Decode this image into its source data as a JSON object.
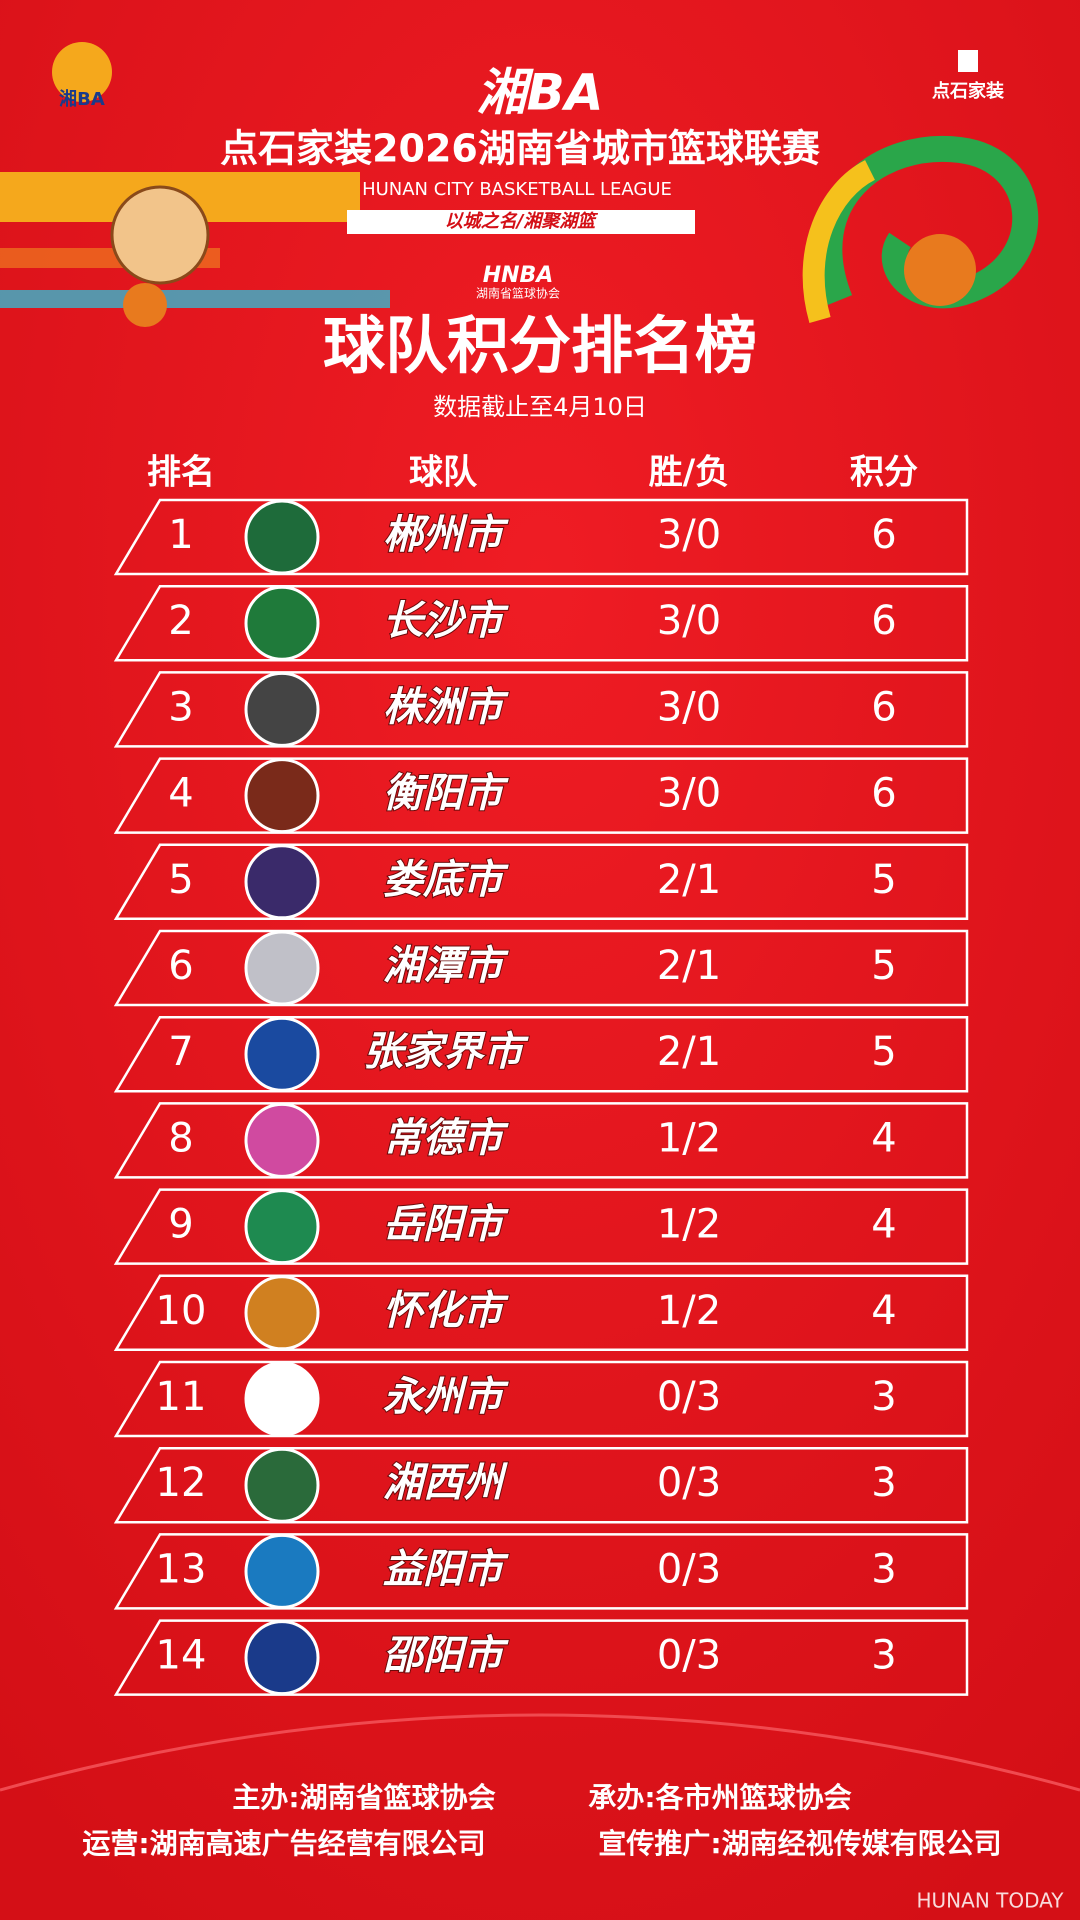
{
  "header": {
    "corner_logo": "湘BA",
    "sponsor": "点石家装",
    "brand": "湘BA",
    "title": "点石家装2026湖南省城市篮球联赛",
    "subtitle_en": "HUNAN CITY BASKETBALL LEAGUE",
    "slogan": "以城之名/湘聚湖篮",
    "association_logo": "HNBA",
    "association": "湖南省篮球协会"
  },
  "board": {
    "title": "球队积分排名榜",
    "date_note": "数据截止至4月10日"
  },
  "table": {
    "columns": [
      "排名",
      "球队",
      "胜/负",
      "积分"
    ],
    "rows": [
      [
        1,
        "郴州市",
        "3/0",
        6
      ],
      [
        2,
        "长沙市",
        "3/0",
        6
      ],
      [
        3,
        "株洲市",
        "3/0",
        6
      ],
      [
        4,
        "衡阳市",
        "3/0",
        6
      ],
      [
        5,
        "娄底市",
        "2/1",
        5
      ],
      [
        6,
        "湘潭市",
        "2/1",
        5
      ],
      [
        7,
        "张家界市",
        "2/1",
        5
      ],
      [
        8,
        "常德市",
        "1/2",
        4
      ],
      [
        9,
        "岳阳市",
        "1/2",
        4
      ],
      [
        10,
        "怀化市",
        "1/2",
        4
      ],
      [
        11,
        "永州市",
        "0/3",
        3
      ],
      [
        12,
        "湘西州",
        "0/3",
        3
      ],
      [
        13,
        "益阳市",
        "0/3",
        3
      ],
      [
        14,
        "邵阳市",
        "0/3",
        3
      ]
    ]
  },
  "footer": {
    "host": "主办:湖南省篮球协会",
    "organizer": "承办:各市州篮球协会",
    "operator": "运营:湖南高速广告经营有限公司",
    "promotion": "宣传推广:湖南经视传媒有限公司"
  },
  "watermark": "HUNAN TODAY"
}
